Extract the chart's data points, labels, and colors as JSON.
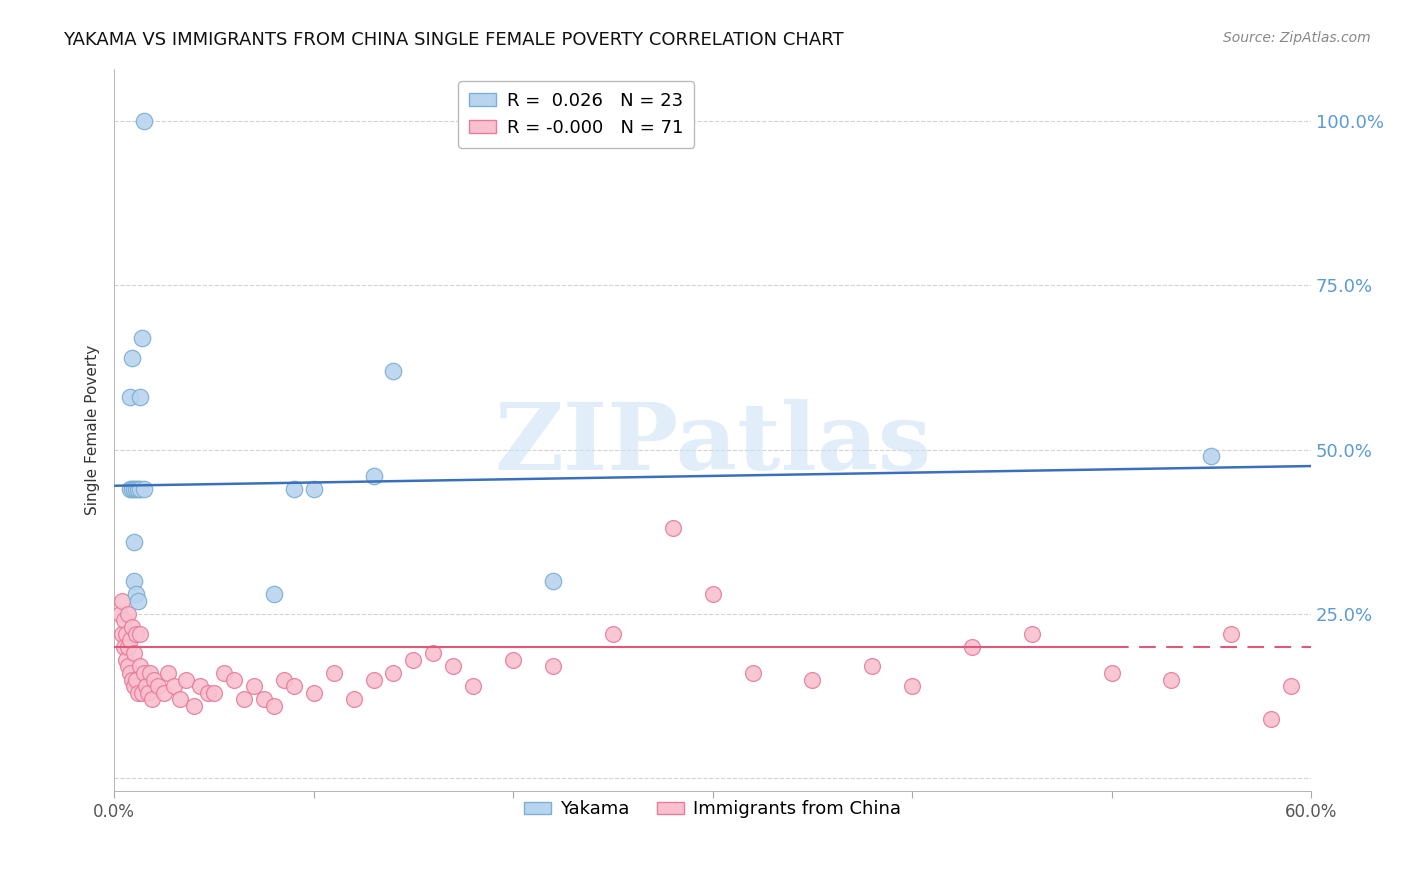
{
  "title": "YAKAMA VS IMMIGRANTS FROM CHINA SINGLE FEMALE POVERTY CORRELATION CHART",
  "source": "Source: ZipAtlas.com",
  "ylabel": "Single Female Poverty",
  "y_ticks": [
    0.0,
    0.25,
    0.5,
    0.75,
    1.0
  ],
  "y_tick_labels": [
    "",
    "25.0%",
    "50.0%",
    "75.0%",
    "100.0%"
  ],
  "x_range": [
    0.0,
    0.6
  ],
  "y_range": [
    -0.02,
    1.08
  ],
  "x_ticks": [
    0.0,
    0.1,
    0.2,
    0.3,
    0.4,
    0.5,
    0.6
  ],
  "x_tick_labels": [
    "0.0%",
    "",
    "",
    "",
    "",
    "",
    "60.0%"
  ],
  "legend_top": [
    {
      "label": "R =  0.026   N = 23",
      "color": "#b8d4ee",
      "edge": "#7bafd4"
    },
    {
      "label": "R = -0.000   N = 71",
      "color": "#f9c0cf",
      "edge": "#e87a9a"
    }
  ],
  "series_blue": {
    "name": "Yakama",
    "color": "#b8d4ee",
    "edge_color": "#7bafd4",
    "trend_color": "#3a6fbd",
    "trend_x": [
      0.0,
      0.6
    ],
    "trend_y": [
      0.445,
      0.475
    ],
    "x": [
      0.008,
      0.008,
      0.009,
      0.009,
      0.01,
      0.01,
      0.01,
      0.011,
      0.011,
      0.012,
      0.012,
      0.013,
      0.013,
      0.014,
      0.015,
      0.015,
      0.08,
      0.09,
      0.1,
      0.13,
      0.14,
      0.22,
      0.55
    ],
    "y": [
      0.44,
      0.58,
      0.44,
      0.64,
      0.3,
      0.36,
      0.44,
      0.28,
      0.44,
      0.27,
      0.44,
      0.44,
      0.58,
      0.67,
      0.44,
      1.0,
      0.28,
      0.44,
      0.44,
      0.46,
      0.62,
      0.3,
      0.49
    ]
  },
  "series_pink": {
    "name": "Immigrants from China",
    "color": "#f9c0cf",
    "edge_color": "#e87a9a",
    "trend_color": "#e05878",
    "trend_x": [
      0.0,
      0.6
    ],
    "trend_y": [
      0.2,
      0.2
    ],
    "trend_solid_end": 0.5,
    "x": [
      0.003,
      0.004,
      0.004,
      0.005,
      0.005,
      0.006,
      0.006,
      0.007,
      0.007,
      0.007,
      0.008,
      0.008,
      0.009,
      0.009,
      0.01,
      0.01,
      0.011,
      0.011,
      0.012,
      0.013,
      0.013,
      0.014,
      0.015,
      0.016,
      0.017,
      0.018,
      0.019,
      0.02,
      0.022,
      0.025,
      0.027,
      0.03,
      0.033,
      0.036,
      0.04,
      0.043,
      0.047,
      0.05,
      0.055,
      0.06,
      0.065,
      0.07,
      0.075,
      0.08,
      0.085,
      0.09,
      0.1,
      0.11,
      0.12,
      0.13,
      0.14,
      0.15,
      0.16,
      0.17,
      0.18,
      0.2,
      0.22,
      0.25,
      0.28,
      0.3,
      0.32,
      0.35,
      0.38,
      0.4,
      0.43,
      0.46,
      0.5,
      0.53,
      0.56,
      0.58,
      0.59
    ],
    "y": [
      0.25,
      0.22,
      0.27,
      0.2,
      0.24,
      0.18,
      0.22,
      0.17,
      0.2,
      0.25,
      0.16,
      0.21,
      0.15,
      0.23,
      0.14,
      0.19,
      0.15,
      0.22,
      0.13,
      0.17,
      0.22,
      0.13,
      0.16,
      0.14,
      0.13,
      0.16,
      0.12,
      0.15,
      0.14,
      0.13,
      0.16,
      0.14,
      0.12,
      0.15,
      0.11,
      0.14,
      0.13,
      0.13,
      0.16,
      0.15,
      0.12,
      0.14,
      0.12,
      0.11,
      0.15,
      0.14,
      0.13,
      0.16,
      0.12,
      0.15,
      0.16,
      0.18,
      0.19,
      0.17,
      0.14,
      0.18,
      0.17,
      0.22,
      0.38,
      0.28,
      0.16,
      0.15,
      0.17,
      0.14,
      0.2,
      0.22,
      0.16,
      0.15,
      0.22,
      0.09,
      0.14
    ]
  },
  "watermark_text": "ZIPatlas",
  "watermark_color": "#cde3f5",
  "watermark_alpha": 0.6,
  "background_color": "#ffffff",
  "grid_color": "#c8c8c8",
  "tick_color_y": "#5b9bd5",
  "tick_color_x": "#555555",
  "title_fontsize": 13,
  "source_fontsize": 10,
  "ylabel_fontsize": 11,
  "ytick_fontsize": 13,
  "xtick_fontsize": 12,
  "legend_fontsize": 13,
  "scatter_size": 130,
  "scatter_lw": 0.9
}
